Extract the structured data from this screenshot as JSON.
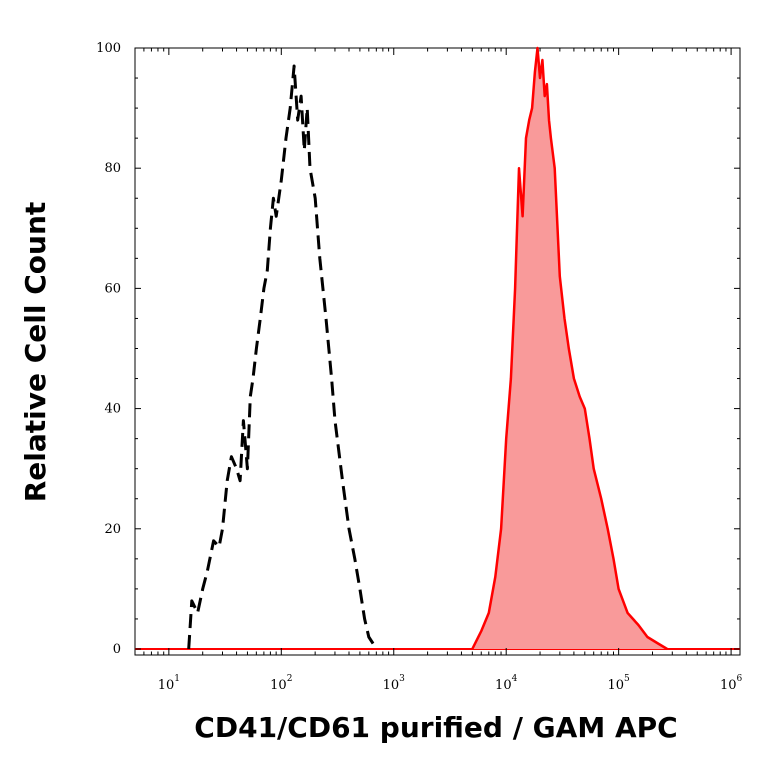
{
  "chart_data": {
    "type": "area",
    "xlabel": "CD41/CD61 purified / GAM APC",
    "ylabel": "Relative Cell Count",
    "x_scale": "log",
    "xlim": [
      5,
      1200000
    ],
    "ylim": [
      -1,
      100
    ],
    "grid": false,
    "y_ticks": [
      0,
      20,
      40,
      60,
      80,
      100
    ],
    "y_tick_labels": [
      "0",
      "20",
      "40",
      "60",
      "80",
      "100"
    ],
    "x_ticks": [
      10,
      100,
      1000,
      10000,
      100000,
      1000000
    ],
    "x_tick_labels": [
      {
        "base": "10",
        "exp": "1"
      },
      {
        "base": "10",
        "exp": "2"
      },
      {
        "base": "10",
        "exp": "3"
      },
      {
        "base": "10",
        "exp": "4"
      },
      {
        "base": "10",
        "exp": "5"
      },
      {
        "base": "10",
        "exp": "6"
      }
    ],
    "series": [
      {
        "style": "dashed",
        "color": "#000000",
        "x": [
          15,
          16,
          18,
          20,
          22,
          25,
          28,
          30,
          33,
          36,
          40,
          43,
          46,
          50,
          53,
          56,
          60,
          65,
          70,
          75,
          80,
          85,
          90,
          100,
          110,
          120,
          130,
          140,
          150,
          160,
          170,
          180,
          200,
          220,
          250,
          280,
          300,
          350,
          400,
          450,
          500,
          550,
          600,
          650,
          700
        ],
        "y": [
          0,
          8,
          6,
          10,
          13,
          18,
          17,
          20,
          28,
          32,
          30,
          28,
          38,
          30,
          42,
          45,
          50,
          55,
          60,
          63,
          70,
          75,
          72,
          78,
          85,
          90,
          97,
          88,
          92,
          83,
          90,
          80,
          75,
          65,
          55,
          45,
          38,
          28,
          20,
          15,
          10,
          5,
          2,
          1,
          0
        ]
      },
      {
        "style": "filled",
        "color": "#ff0000",
        "fill": "#f99a9a",
        "x": [
          5000,
          6000,
          7000,
          8000,
          9000,
          10000,
          11000,
          12000,
          13000,
          14000,
          15000,
          16000,
          17000,
          18000,
          19000,
          20000,
          21000,
          22000,
          23000,
          24000,
          25000,
          27000,
          30000,
          33000,
          36000,
          40000,
          45000,
          50000,
          55000,
          60000,
          70000,
          80000,
          90000,
          100000,
          120000,
          150000,
          180000,
          220000,
          270000
        ],
        "y": [
          0,
          3,
          6,
          12,
          20,
          35,
          45,
          60,
          80,
          72,
          85,
          88,
          90,
          96,
          100,
          95,
          98,
          92,
          94,
          88,
          85,
          80,
          62,
          55,
          50,
          45,
          42,
          40,
          35,
          30,
          25,
          20,
          15,
          10,
          6,
          4,
          2,
          1,
          0
        ]
      }
    ]
  }
}
